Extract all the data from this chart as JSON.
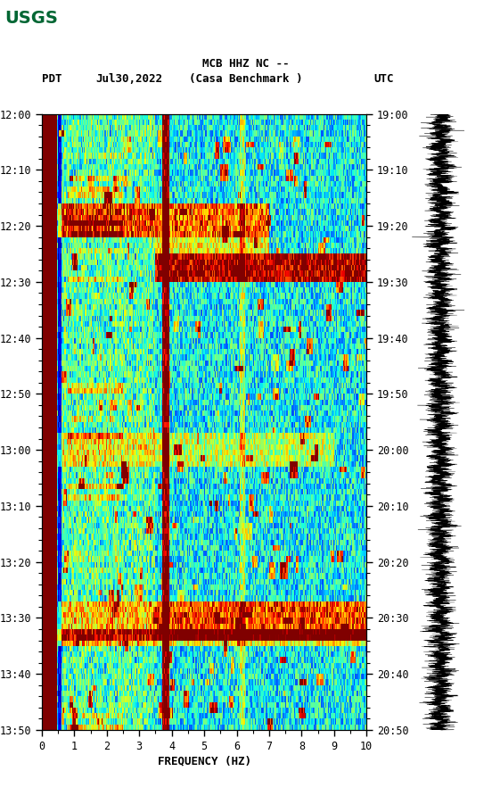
{
  "title_line1": "MCB HHZ NC --",
  "title_line2": "(Casa Benchmark )",
  "left_label": "PDT",
  "date_label": "Jul30,2022",
  "right_label": "UTC",
  "xlabel": "FREQUENCY (HZ)",
  "freq_min": 0,
  "freq_max": 10,
  "freq_ticks": [
    0,
    1,
    2,
    3,
    4,
    5,
    6,
    7,
    8,
    9,
    10
  ],
  "time_labels_pdt": [
    "12:00",
    "12:10",
    "12:20",
    "12:30",
    "12:40",
    "12:50",
    "13:00",
    "13:10",
    "13:20",
    "13:30",
    "13:40",
    "13:50"
  ],
  "time_labels_utc": [
    "19:00",
    "19:10",
    "19:20",
    "19:30",
    "19:40",
    "19:50",
    "20:00",
    "20:10",
    "20:20",
    "20:30",
    "20:40",
    "20:50"
  ],
  "n_time_bins": 110,
  "n_freq_bins": 300,
  "background_color": "#ffffff",
  "colormap": "jet",
  "usgs_text_color": "#006633",
  "fig_width": 5.52,
  "fig_height": 8.92
}
